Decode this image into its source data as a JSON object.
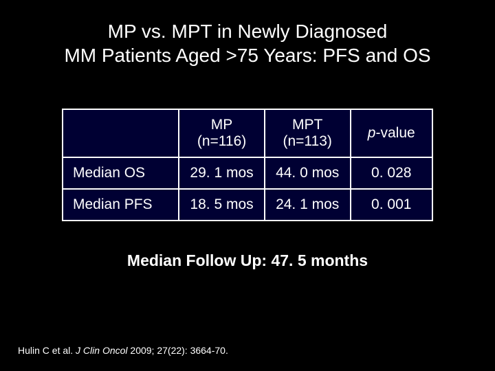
{
  "title_line1": "MP vs. MPT in Newly Diagnosed",
  "title_line2": "MM Patients Aged >75 Years: PFS and OS",
  "table": {
    "header": {
      "blank": "",
      "col1_top": "MP",
      "col1_sub": "(n=116)",
      "col2_top": "MPT",
      "col2_sub": "(n=113)",
      "col3_prefix": "p",
      "col3_suffix": "-value"
    },
    "rows": [
      {
        "label": "Median OS",
        "mp": "29. 1 mos",
        "mpt": "44. 0 mos",
        "p": "0. 028"
      },
      {
        "label": "Median PFS",
        "mp": "18. 5 mos",
        "mpt": "24. 1 mos",
        "p": "0. 001"
      }
    ]
  },
  "followup": "Median Follow Up: 47. 5 months",
  "citation": {
    "authors": "Hulin C et al. ",
    "journal": "J Clin Oncol ",
    "rest": "2009; 27(22): 3664-70."
  },
  "colors": {
    "background": "#000000",
    "table_bg": "#000033",
    "text": "#ffffff",
    "border": "#ffffff"
  }
}
